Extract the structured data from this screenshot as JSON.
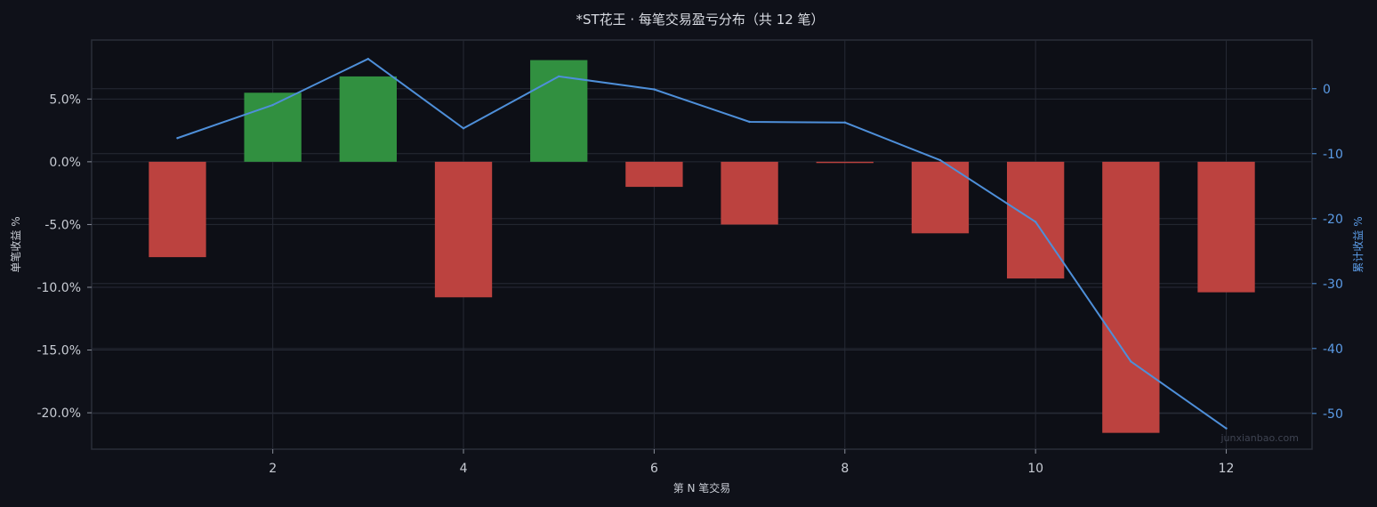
{
  "chart_data": {
    "type": "bar",
    "title": "*ST花王 · 每笔交易盈亏分布（共 12 笔）",
    "xlabel": "第 N 笔交易",
    "ylabel": "单笔收益 %",
    "y2label": "累计收益 %",
    "x": [
      1,
      2,
      3,
      4,
      5,
      6,
      7,
      8,
      9,
      10,
      11,
      12
    ],
    "x_ticks": [
      2,
      4,
      6,
      8,
      10,
      12
    ],
    "xlim": [
      0.1,
      12.9
    ],
    "ylim": [
      -22.9,
      9.7
    ],
    "y_ticks": [
      5,
      0,
      -5,
      -10,
      -15,
      -20
    ],
    "y_tick_labels": [
      "5.0%",
      "0.0%",
      "-5.0%",
      "-10.0%",
      "-15.0%",
      "-20.0%"
    ],
    "y2lim": [
      -55.5,
      7.5
    ],
    "y2_ticks": [
      0,
      -10,
      -20,
      -30,
      -40,
      -50
    ],
    "y2_tick_labels": [
      "0",
      "-10",
      "-20",
      "-30",
      "-40",
      "-50"
    ],
    "series": [
      {
        "kind": "bar",
        "axis": "left",
        "values": [
          -7.6,
          5.5,
          6.8,
          -10.8,
          8.1,
          -2.0,
          -5.0,
          -0.1,
          -5.7,
          -9.3,
          -21.6,
          -10.4
        ]
      },
      {
        "kind": "line",
        "axis": "right",
        "values": [
          -7.6,
          -2.5,
          4.6,
          -6.1,
          1.9,
          -0.1,
          -5.1,
          -5.2,
          -11.0,
          -20.5,
          -42.0,
          -52.3
        ]
      }
    ],
    "colors": {
      "positive": "#319040",
      "negative": "#bc423f",
      "line": "#4e8fd9",
      "grid": "#262a35",
      "frame": "#2a2e39"
    },
    "grid": true,
    "watermark": "junxianbao.com"
  }
}
